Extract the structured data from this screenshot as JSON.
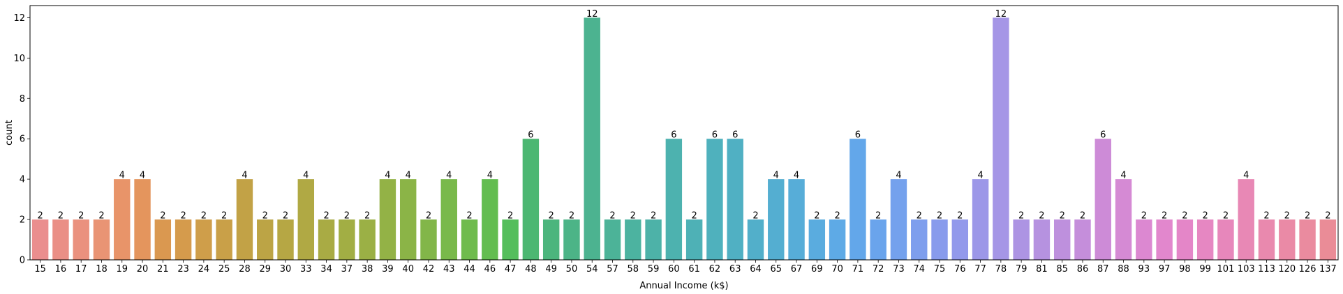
{
  "chart_data": {
    "type": "bar",
    "xlabel": "Annual Income (k$)",
    "ylabel": "count",
    "ylim": [
      0,
      12.6
    ],
    "yticks": [
      0,
      2,
      4,
      6,
      8,
      10,
      12
    ],
    "categories": [
      "15",
      "16",
      "17",
      "18",
      "19",
      "20",
      "21",
      "23",
      "24",
      "25",
      "28",
      "29",
      "30",
      "33",
      "34",
      "37",
      "38",
      "39",
      "40",
      "42",
      "43",
      "44",
      "46",
      "47",
      "48",
      "49",
      "50",
      "54",
      "57",
      "58",
      "59",
      "60",
      "61",
      "62",
      "63",
      "64",
      "65",
      "67",
      "69",
      "70",
      "71",
      "72",
      "73",
      "74",
      "75",
      "76",
      "77",
      "78",
      "79",
      "81",
      "85",
      "86",
      "87",
      "88",
      "93",
      "97",
      "98",
      "99",
      "101",
      "103",
      "113",
      "120",
      "126",
      "137"
    ],
    "values": [
      2,
      2,
      2,
      2,
      4,
      4,
      2,
      2,
      2,
      2,
      4,
      2,
      2,
      4,
      2,
      2,
      2,
      4,
      4,
      2,
      4,
      2,
      4,
      2,
      6,
      2,
      2,
      12,
      2,
      2,
      2,
      6,
      2,
      6,
      6,
      2,
      4,
      4,
      2,
      2,
      6,
      2,
      4,
      2,
      2,
      2,
      4,
      12,
      2,
      2,
      2,
      2,
      6,
      4,
      2,
      2,
      2,
      2,
      2,
      4,
      2,
      2,
      2,
      2
    ],
    "colors": [
      "#ea8e8e",
      "#ea8f86",
      "#ea917e",
      "#e99474",
      "#e89469",
      "#e4955d",
      "#da9850",
      "#d59b4c",
      "#cf9e4a",
      "#c9a048",
      "#c2a246",
      "#bca445",
      "#b6a744",
      "#b0a944",
      "#a9ab44",
      "#a2ae44",
      "#9bb045",
      "#93b246",
      "#8bb447",
      "#82b649",
      "#79b94b",
      "#6fbb4d",
      "#63bd50",
      "#55be5c",
      "#4cb772",
      "#4cb57d",
      "#4cb487",
      "#4cb390",
      "#4cb398",
      "#4cb3a0",
      "#4db2a8",
      "#4db2af",
      "#4eb1b6",
      "#4fb1bd",
      "#50b0c3",
      "#52afca",
      "#54aed1",
      "#57add8",
      "#5aacdf",
      "#5eaae6",
      "#63a7ea",
      "#6aa4ec",
      "#74a1ed",
      "#7e9eed",
      "#889bec",
      "#9299eb",
      "#9c97e8",
      "#a596e6",
      "#ad94e3",
      "#b692e0",
      "#be90dd",
      "#c58edb",
      "#cd8bd7",
      "#d58ad4",
      "#dc88d1",
      "#e287cd",
      "#e486c8",
      "#e687c2",
      "#e787bb",
      "#e888b5",
      "#e989ae",
      "#ea8aa6",
      "#ea8b9f",
      "#ea8c97"
    ]
  }
}
